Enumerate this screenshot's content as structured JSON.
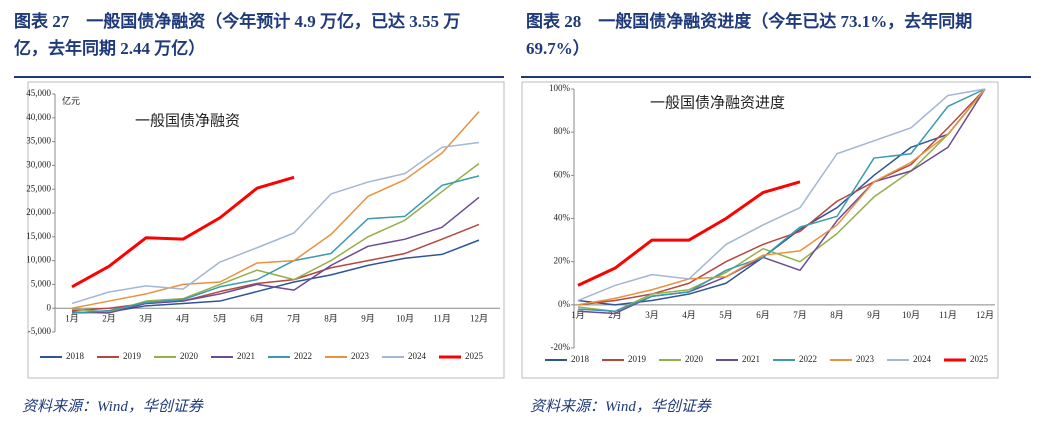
{
  "panels": [
    {
      "caption": "图表 27　一般国债净融资（今年预计 4.9 万亿，已达 3.55 万亿，去年同期 2.44 万亿）",
      "source": "资料来源：Wind，华创证券"
    },
    {
      "caption": "图表 28　一般国债净融资进度（今年已达 73.1%，去年同期 69.7%）",
      "source": "资料来源：Wind，华创证券"
    }
  ],
  "chart_data": [
    {
      "type": "line",
      "title": "一般国债净融资",
      "y_label": "亿元",
      "categories": [
        "1月",
        "2月",
        "3月",
        "4月",
        "5月",
        "6月",
        "7月",
        "8月",
        "9月",
        "10月",
        "11月",
        "12月"
      ],
      "ylim": [
        -5000,
        45000
      ],
      "yticks": [
        {
          "value": -5000,
          "label": "-5,000"
        },
        0,
        {
          "value": 5000,
          "label": "5,000"
        },
        {
          "value": 10000,
          "label": "10,000"
        },
        {
          "value": 15000,
          "label": "15,000"
        },
        {
          "value": 20000,
          "label": "20,000"
        },
        {
          "value": 25000,
          "label": "25,000"
        },
        {
          "value": 30000,
          "label": "30,000"
        },
        {
          "value": 35000,
          "label": "35,000"
        },
        {
          "value": 40000,
          "label": "40,000"
        },
        {
          "value": 45000,
          "label": "45,000"
        }
      ],
      "series": [
        {
          "name": "2018",
          "color": "#2e5597",
          "values": [
            -1000,
            -800,
            500,
            1000,
            1500,
            3500,
            5500,
            7000,
            9000,
            10500,
            11300,
            14300
          ]
        },
        {
          "name": "2019",
          "color": "#b5473f",
          "values": [
            -500,
            0,
            1000,
            1500,
            3500,
            5200,
            6000,
            8500,
            10000,
            11500,
            14500,
            17600
          ]
        },
        {
          "name": "2020",
          "color": "#92b04a",
          "values": [
            -200,
            -800,
            1500,
            2000,
            5000,
            8000,
            6000,
            10000,
            15000,
            18500,
            24500,
            30400
          ]
        },
        {
          "name": "2021",
          "color": "#6b4b94",
          "values": [
            -800,
            -1000,
            1000,
            1500,
            3000,
            5000,
            3800,
            9000,
            13000,
            14500,
            17000,
            23300
          ]
        },
        {
          "name": "2022",
          "color": "#3a9bb0",
          "values": [
            -1000,
            -500,
            1200,
            1800,
            4500,
            6000,
            10000,
            11500,
            18800,
            19300,
            25800,
            27800
          ]
        },
        {
          "name": "2023",
          "color": "#e8913f",
          "values": [
            0,
            1500,
            3000,
            5000,
            5500,
            9500,
            10000,
            15500,
            23500,
            27000,
            32600,
            41300
          ]
        },
        {
          "name": "2024",
          "color": "#a3b6d4",
          "values": [
            1000,
            3400,
            4700,
            4000,
            9700,
            12700,
            15800,
            24000,
            26500,
            28300,
            33800,
            34800
          ]
        },
        {
          "name": "2025",
          "color": "#ff0000",
          "values": [
            4500,
            8800,
            14800,
            14500,
            19000,
            25200,
            27500,
            null,
            null,
            null,
            null,
            null
          ]
        }
      ]
    },
    {
      "type": "line",
      "title": "一般国债净融资进度",
      "categories": [
        "1月",
        "2月",
        "3月",
        "4月",
        "5月",
        "6月",
        "7月",
        "8月",
        "9月",
        "10月",
        "11月",
        "12月"
      ],
      "ylim": [
        -20,
        100
      ],
      "yticks": [
        {
          "value": -20,
          "label": "-20%"
        },
        {
          "value": 0,
          "label": "0%"
        },
        {
          "value": 20,
          "label": "20%"
        },
        {
          "value": 40,
          "label": "40%"
        },
        {
          "value": 60,
          "label": "60%"
        },
        {
          "value": 80,
          "label": "80%"
        },
        {
          "value": 100,
          "label": "100%"
        }
      ],
      "series": [
        {
          "name": "2018",
          "color": "#2e5597",
          "values": [
            2,
            0,
            2,
            5,
            10,
            22,
            35,
            45,
            60,
            73,
            79,
            100
          ]
        },
        {
          "name": "2019",
          "color": "#b5473f",
          "values": [
            0,
            2,
            5,
            10,
            20,
            28,
            34,
            48,
            57,
            65,
            82,
            100
          ]
        },
        {
          "name": "2020",
          "color": "#92b04a",
          "values": [
            -1,
            -3,
            5,
            7,
            15,
            26,
            20,
            33,
            50,
            62,
            79,
            100
          ]
        },
        {
          "name": "2021",
          "color": "#6b4b94",
          "values": [
            -3,
            -4,
            4,
            6,
            13,
            22,
            16,
            39,
            57,
            62,
            73,
            100
          ]
        },
        {
          "name": "2022",
          "color": "#3a9bb0",
          "values": [
            -2,
            -3,
            4,
            6,
            16,
            22,
            36,
            41,
            68,
            70,
            92,
            100
          ]
        },
        {
          "name": "2023",
          "color": "#e8913f",
          "values": [
            0,
            3,
            7,
            12,
            13,
            23,
            25,
            37,
            57,
            66,
            79,
            100
          ]
        },
        {
          "name": "2024",
          "color": "#a3b6d4",
          "values": [
            2,
            9,
            14,
            12,
            28,
            37,
            45,
            70,
            76,
            82,
            97,
            100
          ]
        },
        {
          "name": "2025",
          "color": "#ff0000",
          "values": [
            9,
            17,
            30,
            30,
            40,
            52,
            57,
            null,
            null,
            null,
            null,
            null
          ]
        }
      ]
    }
  ]
}
